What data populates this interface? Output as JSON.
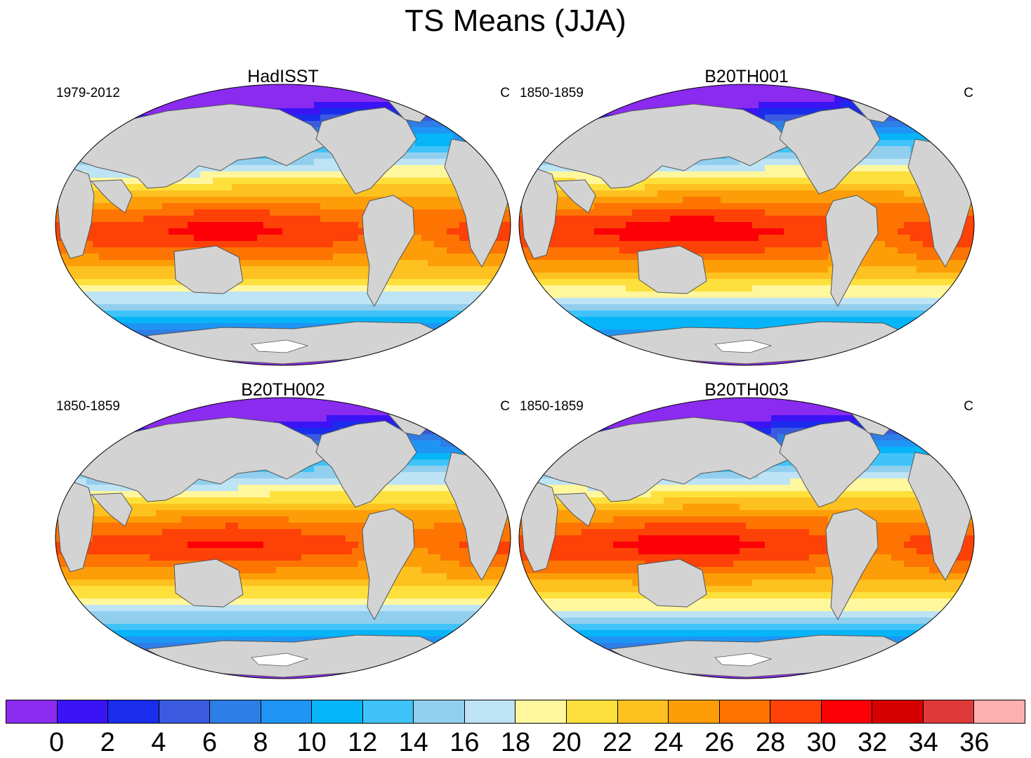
{
  "figure": {
    "title": "TS Means (JJA)"
  },
  "panels": [
    {
      "title": "HadISST",
      "period": "1979-2012",
      "units": "C"
    },
    {
      "title": "B20TH001",
      "period": "1850-1859",
      "units": "C"
    },
    {
      "title": "B20TH002",
      "period": "1850-1859",
      "units": "C"
    },
    {
      "title": "B20TH003",
      "period": "1850-1859",
      "units": "C"
    }
  ],
  "colorbar": {
    "labels": [
      "0",
      "2",
      "4",
      "6",
      "8",
      "10",
      "12",
      "14",
      "16",
      "18",
      "20",
      "22",
      "24",
      "26",
      "28",
      "30",
      "32",
      "34",
      "36"
    ],
    "colors": [
      "#8a2bef",
      "#3a14f5",
      "#1a2cec",
      "#3a5be0",
      "#2f7de6",
      "#1e95f5",
      "#06b4f8",
      "#3fc3f8",
      "#92cfee",
      "#bde3f5",
      "#fff79e",
      "#fee03d",
      "#fdc120",
      "#fd9e08",
      "#fd7403",
      "#fd4107",
      "#fb0006",
      "#d40001",
      "#df3939",
      "#fdb0b0"
    ]
  },
  "map_style": {
    "land_color": "#d3d3d3",
    "coast_color": "#555555",
    "ice_color": "#ffffff"
  }
}
